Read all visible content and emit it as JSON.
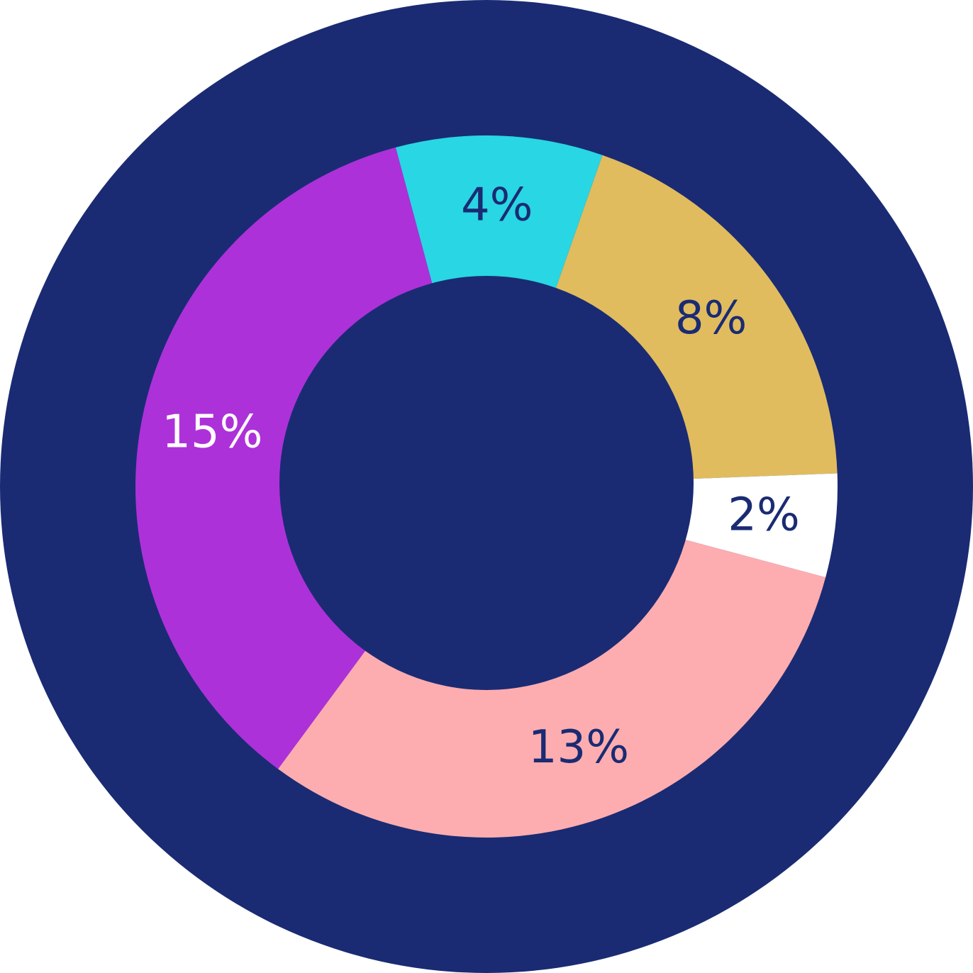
{
  "chart_data": {
    "type": "donut",
    "categories": [
      null,
      null,
      null,
      null,
      null
    ],
    "values": [
      4,
      8,
      2,
      13,
      15
    ],
    "value_labels": [
      "4%",
      "8%",
      "2%",
      "13%",
      "15%"
    ],
    "colors": [
      "#29d6e3",
      "#e0bc5f",
      "#ffffff",
      "#fdadb0",
      "#ad31d9"
    ],
    "background_color": "#1a2b73"
  }
}
